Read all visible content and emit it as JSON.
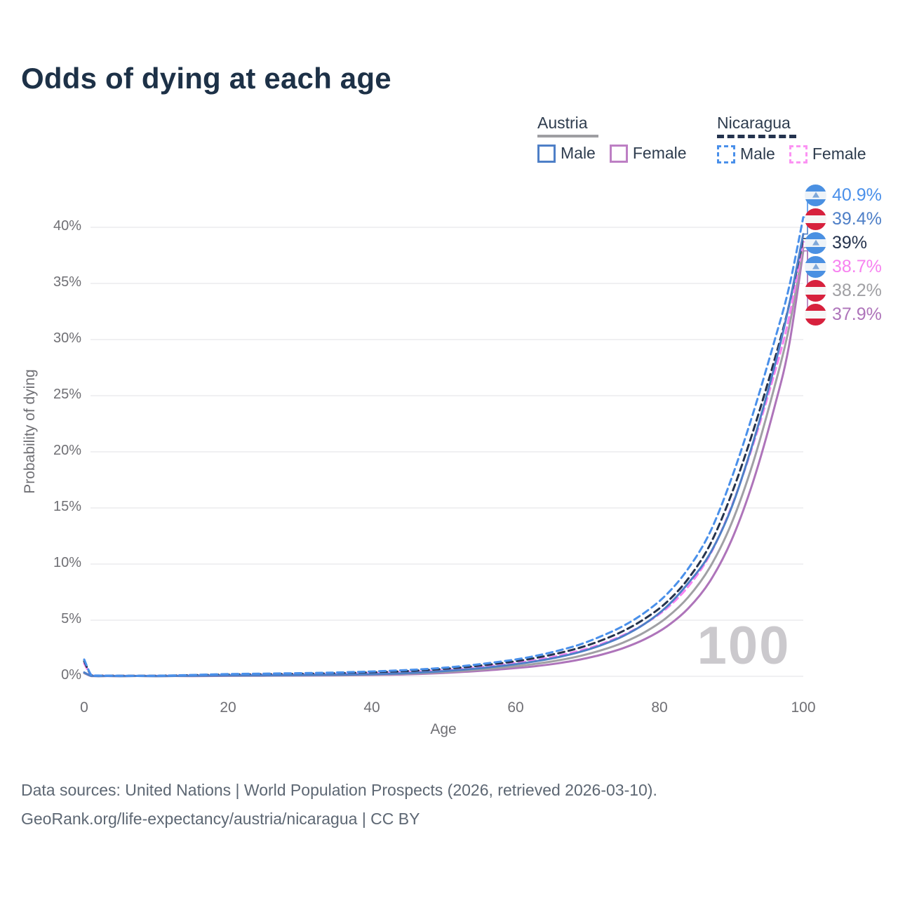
{
  "chart_data": {
    "type": "line",
    "title": "Odds of dying at each age",
    "xlabel": "Age",
    "ylabel": "Probability of dying",
    "xlim": [
      0,
      100
    ],
    "ylim_pct": [
      0,
      43
    ],
    "grid": true,
    "legend_position": "top-right",
    "hover_age_label": "100",
    "x_ticks": [
      0,
      20,
      40,
      60,
      80,
      100
    ],
    "y_ticks": [
      {
        "v": 0,
        "label": "0%"
      },
      {
        "v": 5,
        "label": "5%"
      },
      {
        "v": 10,
        "label": "10%"
      },
      {
        "v": 15,
        "label": "15%"
      },
      {
        "v": 20,
        "label": "20%"
      },
      {
        "v": 25,
        "label": "25%"
      },
      {
        "v": 30,
        "label": "30%"
      },
      {
        "v": 35,
        "label": "35%"
      },
      {
        "v": 40,
        "label": "40%"
      }
    ],
    "x": [
      0,
      1,
      2,
      5,
      10,
      15,
      20,
      25,
      30,
      35,
      40,
      45,
      50,
      55,
      60,
      63,
      66,
      69,
      72,
      75,
      78,
      81,
      84,
      87,
      90,
      93,
      96,
      98,
      100
    ],
    "series": [
      {
        "id": "nicaragua-male",
        "name": "Nicaragua Male",
        "country": "Nicaragua",
        "sex": "Male",
        "flag": "nic",
        "dash": true,
        "color": "#4a90ea",
        "end_label": "40.9%",
        "values": [
          1.5,
          0.1,
          0.07,
          0.05,
          0.05,
          0.12,
          0.2,
          0.24,
          0.28,
          0.34,
          0.43,
          0.56,
          0.76,
          1.08,
          1.5,
          1.85,
          2.3,
          2.85,
          3.6,
          4.5,
          5.7,
          7.3,
          9.6,
          12.8,
          17.6,
          23.4,
          29.9,
          34.6,
          40.9
        ]
      },
      {
        "id": "austria-male",
        "name": "Austria Male",
        "country": "Austria",
        "sex": "Male",
        "flag": "aut",
        "dash": false,
        "color": "#4e7fc7",
        "end_label": "39.4%",
        "values": [
          0.35,
          0.03,
          0.02,
          0.02,
          0.02,
          0.05,
          0.08,
          0.09,
          0.11,
          0.14,
          0.19,
          0.29,
          0.46,
          0.72,
          1.08,
          1.36,
          1.72,
          2.18,
          2.8,
          3.6,
          4.7,
          6.2,
          8.3,
          10.9,
          15.0,
          20.8,
          27.6,
          33.0,
          39.4
        ]
      },
      {
        "id": "nicaragua-both",
        "name": "Nicaragua Both sexes",
        "country": "Nicaragua",
        "sex": "Both",
        "flag": "nic",
        "dash": true,
        "color": "#25334d",
        "end_label": "39%",
        "values": [
          1.35,
          0.09,
          0.06,
          0.05,
          0.05,
          0.1,
          0.15,
          0.18,
          0.22,
          0.27,
          0.35,
          0.47,
          0.66,
          0.95,
          1.34,
          1.66,
          2.06,
          2.56,
          3.22,
          4.05,
          5.15,
          6.6,
          8.7,
          11.7,
          16.2,
          21.8,
          28.2,
          33.0,
          39.0
        ]
      },
      {
        "id": "nicaragua-female",
        "name": "Nicaragua Female",
        "country": "Nicaragua",
        "sex": "Female",
        "flag": "nic",
        "dash": true,
        "color": "#f782f0",
        "end_label": "38.7%",
        "values": [
          1.15,
          0.08,
          0.05,
          0.04,
          0.04,
          0.07,
          0.1,
          0.13,
          0.16,
          0.21,
          0.28,
          0.39,
          0.56,
          0.82,
          1.18,
          1.47,
          1.84,
          2.3,
          2.9,
          3.68,
          4.7,
          6.05,
          8.0,
          10.8,
          15.1,
          20.6,
          27.0,
          31.9,
          38.7
        ]
      },
      {
        "id": "austria-both",
        "name": "Austria Both sexes",
        "country": "Austria",
        "sex": "Both",
        "flag": "aut",
        "dash": false,
        "color": "#a0a0a4",
        "end_label": "38.2%",
        "values": [
          0.3,
          0.03,
          0.02,
          0.01,
          0.01,
          0.04,
          0.06,
          0.07,
          0.09,
          0.11,
          0.16,
          0.24,
          0.38,
          0.6,
          0.9,
          1.13,
          1.43,
          1.82,
          2.34,
          3.02,
          3.95,
          5.23,
          7.05,
          9.7,
          13.6,
          19.0,
          25.8,
          31.0,
          38.2
        ]
      },
      {
        "id": "austria-female",
        "name": "Austria Female",
        "country": "Austria",
        "sex": "Female",
        "flag": "aut",
        "dash": false,
        "color": "#ae74ba",
        "end_label": "37.9%",
        "values": [
          0.28,
          0.02,
          0.01,
          0.01,
          0.01,
          0.02,
          0.04,
          0.05,
          0.06,
          0.08,
          0.12,
          0.18,
          0.3,
          0.48,
          0.73,
          0.92,
          1.17,
          1.5,
          1.94,
          2.52,
          3.32,
          4.43,
          6.05,
          8.45,
          12.1,
          17.3,
          24.0,
          29.4,
          37.9
        ]
      }
    ]
  },
  "legend": {
    "groups": [
      {
        "id": "austria",
        "title": "Austria",
        "style": "solid",
        "underline_color": "#9e9ea2",
        "items": [
          {
            "label": "Male",
            "color": "#4e7fc7"
          },
          {
            "label": "Female",
            "color": "#bd7fc4"
          }
        ]
      },
      {
        "id": "nicaragua",
        "title": "Nicaragua",
        "style": "dashed",
        "underline_color": "#24334e",
        "items": [
          {
            "label": "Male",
            "color": "#4a90ea"
          },
          {
            "label": "Female",
            "color": "#fb93f3"
          }
        ]
      }
    ]
  },
  "footer": {
    "line1": "Data sources: United Nations | World Population Prospects (2026, retrieved 2026-03-10).",
    "line2": "GeoRank.org/life-expectancy/austria/nicaragua | CC BY"
  },
  "colors": {
    "title": "#1d3147",
    "axis_text": "#6f6f74",
    "gridline": "#ececee",
    "watermark": "#cbc9cd",
    "footer_text": "#5d6773"
  }
}
